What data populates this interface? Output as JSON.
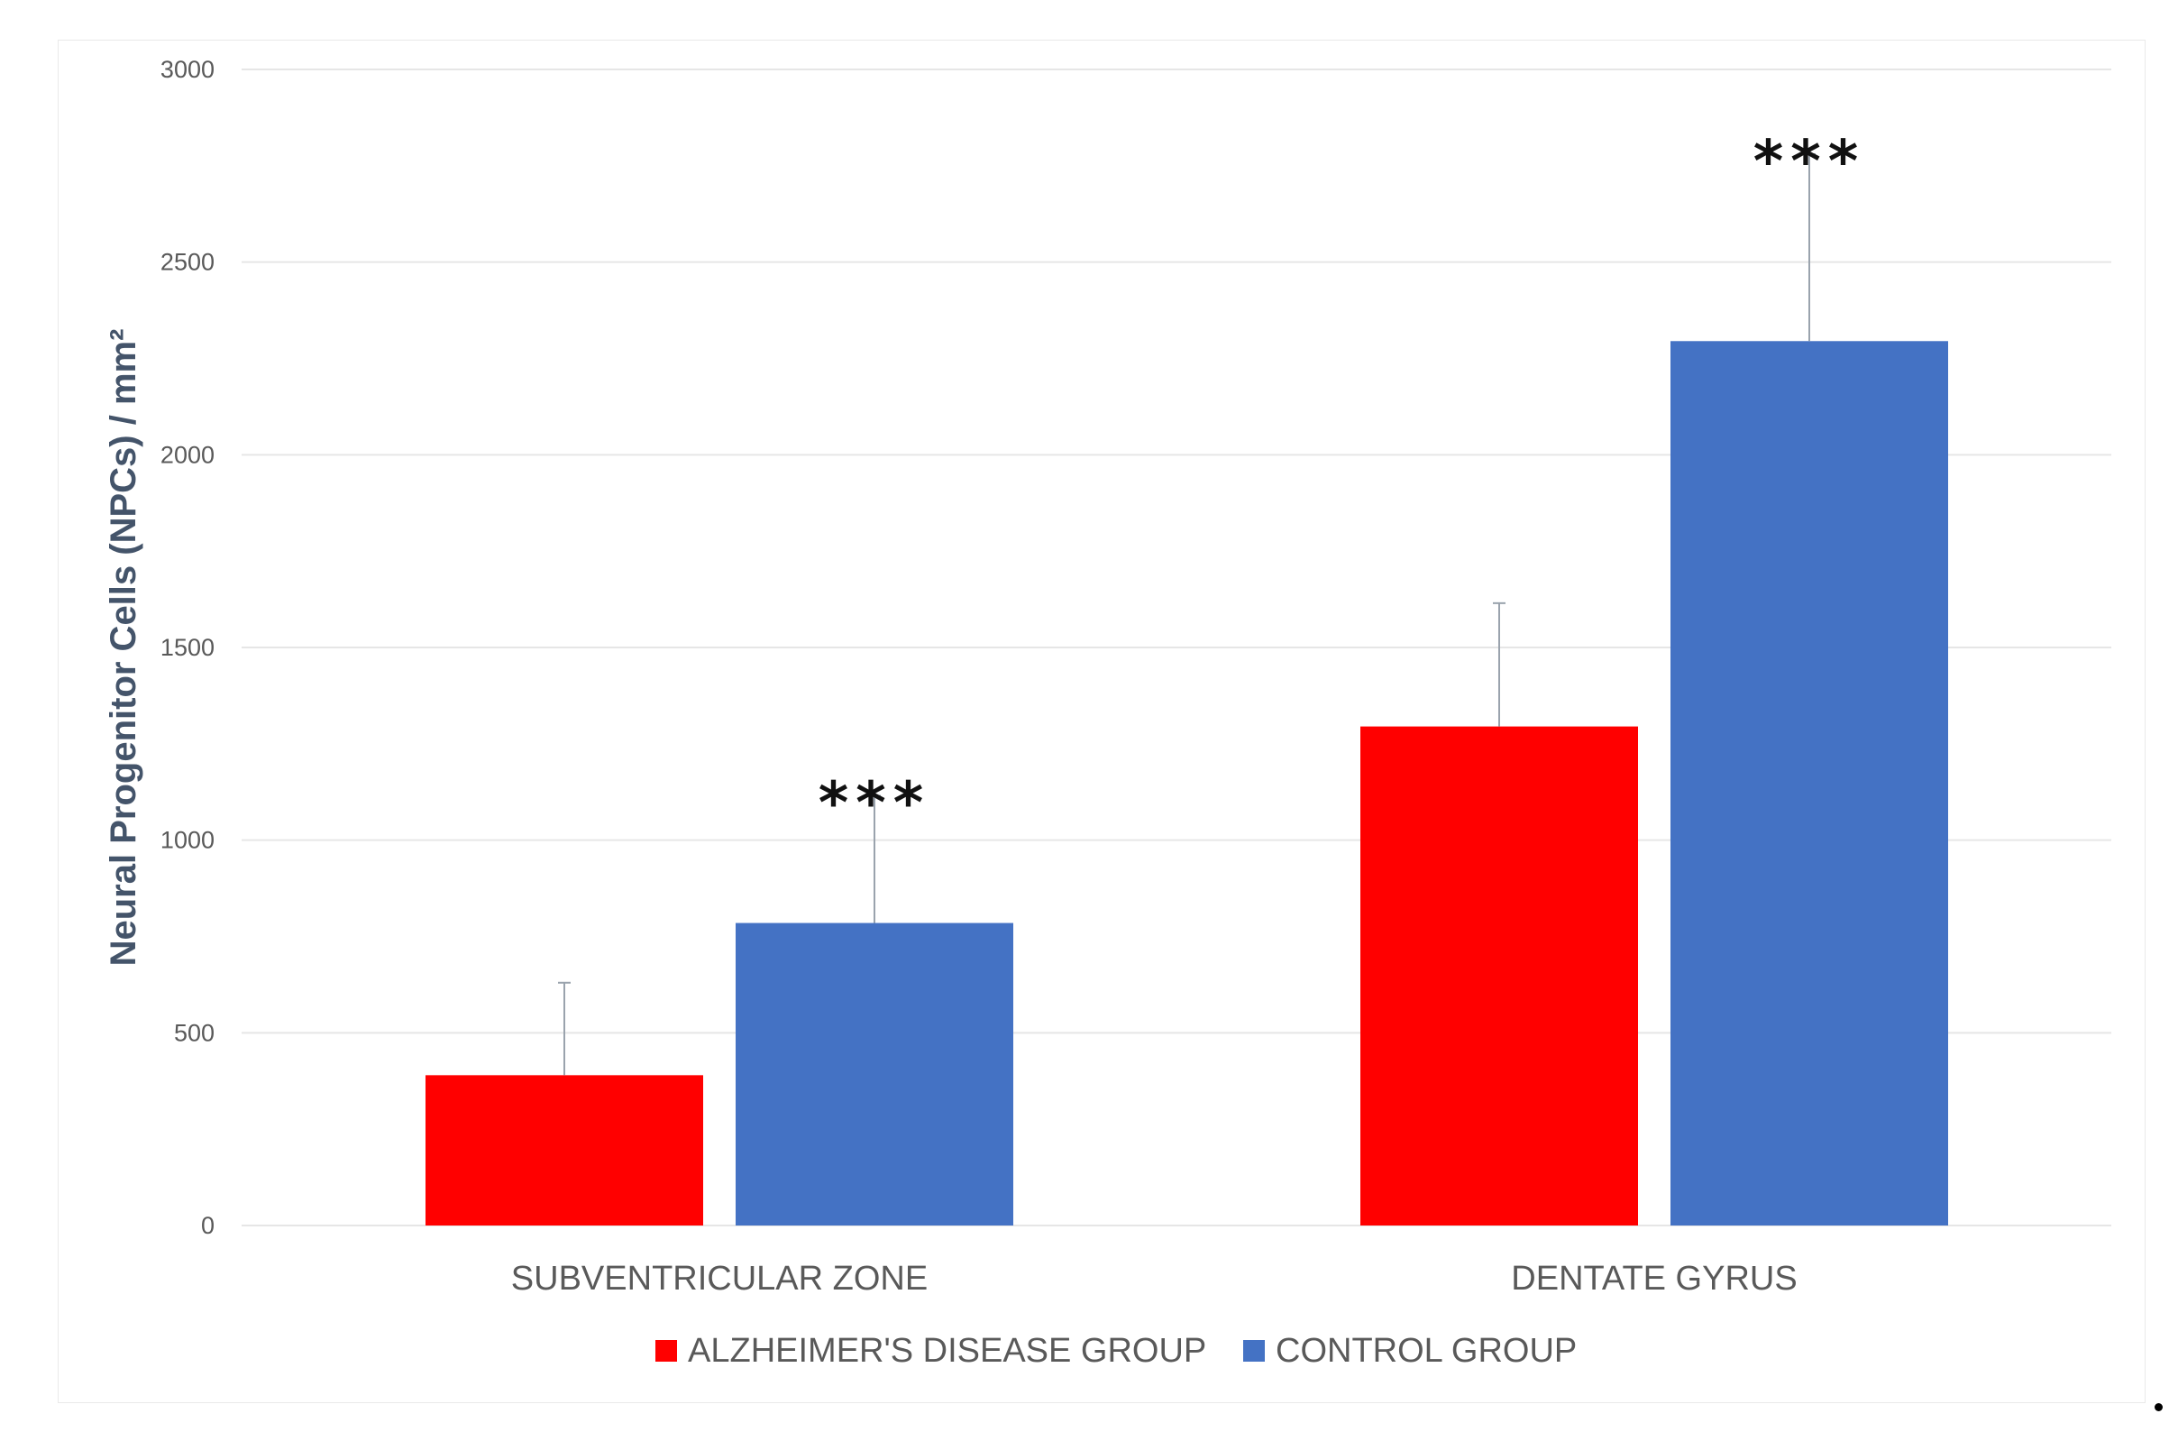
{
  "chart_data": {
    "type": "bar",
    "ylabel": "Neural Progenitor Cells (NPCs) / mm²",
    "ylim": [
      0,
      3000
    ],
    "yticks": [
      "0",
      "500",
      "1000",
      "1500",
      "2000",
      "2500",
      "3000"
    ],
    "grid": true,
    "legend_placement": "bottom",
    "categories": [
      "SUBVENTRICULAR ZONE",
      "DENTATE GYRUS"
    ],
    "series": [
      {
        "name": "ALZHEIMER'S DISEASE GROUP",
        "color": "#ff0000",
        "values": [
          390,
          1295
        ],
        "error": [
          240,
          320
        ]
      },
      {
        "name": "CONTROL GROUP",
        "color": "#4472c4",
        "values": [
          785,
          2295
        ],
        "error": [
          330,
          485
        ]
      }
    ],
    "annotations": [
      {
        "text": "***",
        "category": 0,
        "series": 1
      },
      {
        "text": "***",
        "category": 1,
        "series": 1
      }
    ]
  }
}
